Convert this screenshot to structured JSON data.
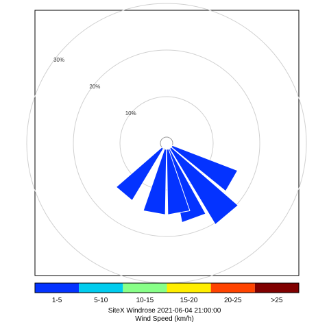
{
  "chart_data": {
    "type": "windrose",
    "direction_units": "degrees",
    "rings": [
      {
        "value": 10,
        "label": "10%"
      },
      {
        "value": 20,
        "label": "20%"
      },
      {
        "value": 30,
        "label": "30%"
      }
    ],
    "rmax": 35,
    "calm_circle": true,
    "grid": true,
    "series": [
      {
        "name": "1-5",
        "color": "#0433ff",
        "petals": [
          {
            "direction": 120,
            "value": 15
          },
          {
            "direction": 140,
            "value": 19
          },
          {
            "direction": 160,
            "value": 16
          },
          {
            "direction": 170,
            "value": 14
          },
          {
            "direction": 190,
            "value": 14
          },
          {
            "direction": 220,
            "value": 13
          }
        ]
      }
    ],
    "legend": {
      "items": [
        {
          "label": "1-5",
          "color": "#0433ff"
        },
        {
          "label": "5-10",
          "color": "#00ccee"
        },
        {
          "label": "10-15",
          "color": "#88ff88"
        },
        {
          "label": "15-20",
          "color": "#ffee00"
        },
        {
          "label": "20-25",
          "color": "#ff4400"
        },
        {
          "label": ">25",
          "color": "#800000"
        }
      ]
    },
    "title": "SiteX Windrose 2021-06-04 21:00:00",
    "xlabel": "Wind Speed (km/h)"
  }
}
